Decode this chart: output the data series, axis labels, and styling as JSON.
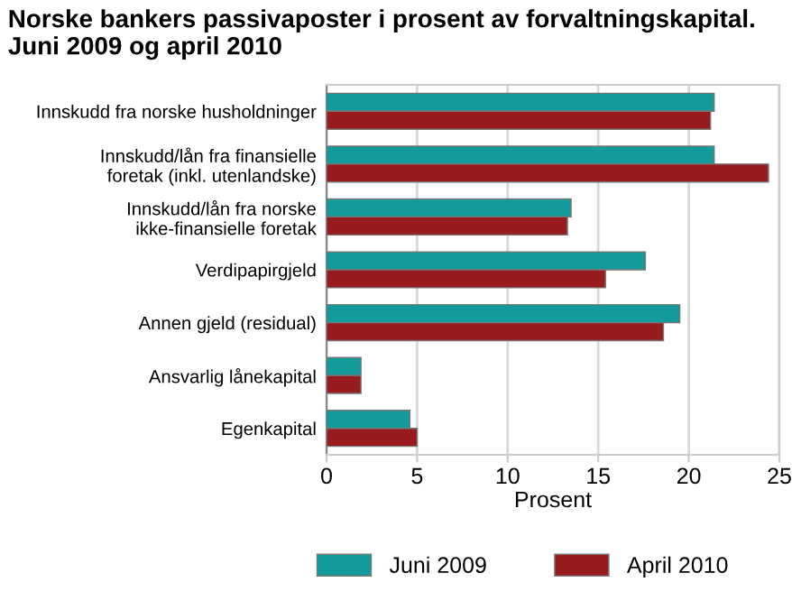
{
  "chart_data": {
    "type": "bar",
    "orientation": "horizontal",
    "title": "Norske bankers passivaposter i prosent av forvaltningskapital.\nJuni 2009 og april 2010",
    "categories": [
      "Innskudd fra norske husholdninger",
      "Innskudd/lån fra finansielle\nforetak (inkl. utenlandske)",
      "Innskudd/lån fra norske\nikke-finansielle foretak",
      "Verdipapirgjeld",
      "Annen gjeld (residual)",
      "Ansvarlig lånekapital",
      "Egenkapital"
    ],
    "series": [
      {
        "name": "Juni 2009",
        "color": "#139b9b",
        "values": [
          21.4,
          21.4,
          13.5,
          17.6,
          19.5,
          1.9,
          4.6
        ]
      },
      {
        "name": "April 2010",
        "color": "#981b1e",
        "values": [
          21.2,
          24.4,
          13.3,
          15.4,
          18.6,
          1.9,
          5.0
        ]
      }
    ],
    "xlabel": "Prosent",
    "xlim": [
      0,
      25
    ],
    "xticks": [
      0,
      5,
      10,
      15,
      20,
      25
    ],
    "grid": "x",
    "legend": "bottom"
  }
}
